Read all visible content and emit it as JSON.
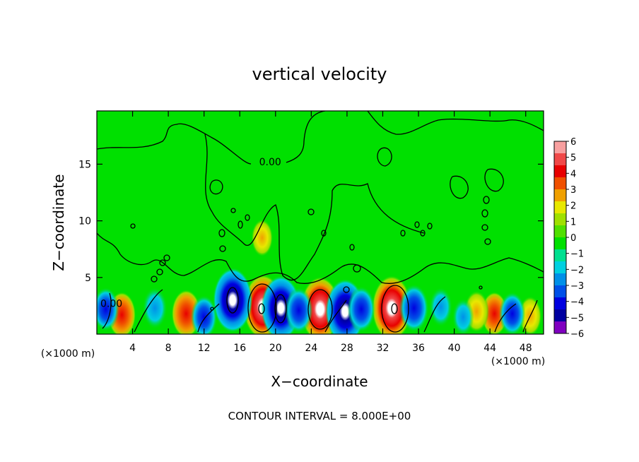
{
  "chart_data": {
    "type": "heatmap",
    "title": "vertical velocity",
    "xlabel": "X−coordinate",
    "ylabel": "Z−coordinate",
    "x_unit_left": "(×1000 m)",
    "x_unit_right": "(×1000 m)",
    "xlim": [
      0,
      50
    ],
    "ylim": [
      0,
      19.7
    ],
    "x_ticks": [
      4,
      8,
      12,
      16,
      20,
      24,
      28,
      32,
      36,
      40,
      44,
      48
    ],
    "y_ticks": [
      5,
      10,
      15
    ],
    "contour_label": "0.00",
    "contour_label_pos": [
      19.4,
      15.2
    ],
    "contour_label_pos2": [
      4.0,
      2.7
    ],
    "footer": "CONTOUR INTERVAL = 8.000E+00",
    "colorbar": {
      "labels": [
        "6",
        "5",
        "4",
        "3",
        "2",
        "1",
        "0",
        "−1",
        "−2",
        "−3",
        "−4",
        "−5",
        "−6"
      ],
      "colors": [
        "#f8a0a0",
        "#f04848",
        "#e80000",
        "#f05000",
        "#f0a000",
        "#e8e800",
        "#a0e000",
        "#50e000",
        "#00e000",
        "#00e090",
        "#00d0e0",
        "#0090e8",
        "#0050e8",
        "#0000e0",
        "#0000a0",
        "#8000c0"
      ]
    },
    "features": [
      {
        "x": 18.6,
        "z": 2.4,
        "v": 6
      },
      {
        "x": 25.0,
        "z": 2.2,
        "v": 6
      },
      {
        "x": 33.0,
        "z": 2.3,
        "v": 6
      },
      {
        "x": 10.0,
        "z": 1.8,
        "v": 4
      },
      {
        "x": 2.8,
        "z": 1.7,
        "v": 3.5
      },
      {
        "x": 44.5,
        "z": 1.8,
        "v": 3
      },
      {
        "x": 42.5,
        "z": 2.0,
        "v": 2.5
      },
      {
        "x": 48.5,
        "z": 1.6,
        "v": 2
      },
      {
        "x": 18.5,
        "z": 8.5,
        "v": 1.5
      },
      {
        "x": 15.2,
        "z": 3.0,
        "v": -5.5
      },
      {
        "x": 20.6,
        "z": 2.3,
        "v": -5.5
      },
      {
        "x": 22.6,
        "z": 2.1,
        "v": -3.5
      },
      {
        "x": 27.8,
        "z": 2.0,
        "v": -5
      },
      {
        "x": 29.6,
        "z": 2.2,
        "v": -3.5
      },
      {
        "x": 35.5,
        "z": 2.3,
        "v": -4
      },
      {
        "x": 1.0,
        "z": 2.2,
        "v": -3
      },
      {
        "x": 6.5,
        "z": 2.3,
        "v": -2.5
      },
      {
        "x": 12.0,
        "z": 1.5,
        "v": -3
      },
      {
        "x": 38.5,
        "z": 2.4,
        "v": -2
      },
      {
        "x": 46.5,
        "z": 1.8,
        "v": -3
      },
      {
        "x": 41.0,
        "z": 1.5,
        "v": -1.5
      }
    ]
  }
}
